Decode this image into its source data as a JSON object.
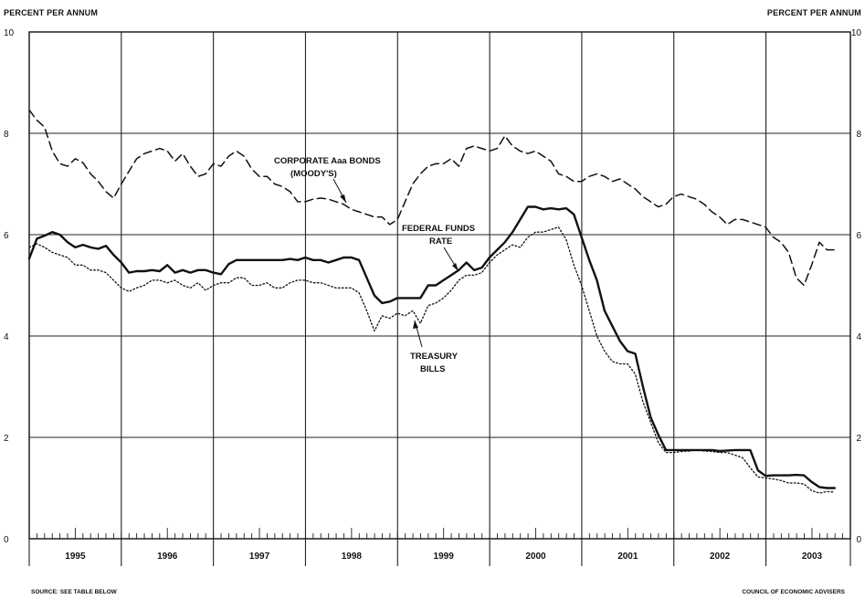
{
  "chart_data": {
    "type": "line",
    "left_axis_label": "PERCENT PER ANNUM",
    "right_axis_label": "PERCENT PER ANNUM",
    "ylim": [
      0,
      10
    ],
    "xlim": [
      1995.0,
      2003.917
    ],
    "y_ticks": [
      "0",
      "2",
      "4",
      "6",
      "8",
      "10"
    ],
    "year_labels": [
      "1995",
      "1996",
      "1997",
      "1998",
      "1999",
      "2000",
      "2001",
      "2002",
      "2003"
    ],
    "grid": "horizontal at each tick, vertical at each year",
    "annotations": {
      "corporate_line1": "CORPORATE Aaa BONDS",
      "corporate_line2": "(MOODY'S)",
      "fedfunds_line1": "FEDERAL FUNDS",
      "fedfunds_line2": "RATE",
      "tbills_line1": "TREASURY",
      "tbills_line2": "BILLS"
    },
    "source": "SOURCE: SEE TABLE BELOW",
    "credit": "COUNCIL OF ECONOMIC ADVISERS",
    "series": [
      {
        "name": "CORPORATE Aaa BONDS (MOODY'S)",
        "style": "dashed",
        "start": 1995.0,
        "step": 0.0833,
        "values": [
          8.46,
          8.26,
          8.12,
          7.65,
          7.4,
          7.35,
          7.5,
          7.42,
          7.2,
          7.05,
          6.85,
          6.72,
          7.0,
          7.25,
          7.5,
          7.6,
          7.65,
          7.7,
          7.65,
          7.45,
          7.6,
          7.35,
          7.15,
          7.2,
          7.4,
          7.35,
          7.55,
          7.65,
          7.55,
          7.3,
          7.15,
          7.15,
          7.0,
          6.95,
          6.85,
          6.65,
          6.65,
          6.7,
          6.72,
          6.7,
          6.65,
          6.6,
          6.5,
          6.45,
          6.4,
          6.35,
          6.35,
          6.2,
          6.3,
          6.65,
          7.0,
          7.2,
          7.35,
          7.4,
          7.4,
          7.5,
          7.35,
          7.7,
          7.75,
          7.7,
          7.65,
          7.7,
          7.95,
          7.75,
          7.65,
          7.6,
          7.65,
          7.55,
          7.45,
          7.2,
          7.15,
          7.05,
          7.05,
          7.15,
          7.2,
          7.15,
          7.05,
          7.1,
          7.0,
          6.9,
          6.75,
          6.65,
          6.55,
          6.6,
          6.75,
          6.8,
          6.75,
          6.7,
          6.6,
          6.45,
          6.35,
          6.2,
          6.3,
          6.3,
          6.25,
          6.2,
          6.15,
          5.95,
          5.85,
          5.65,
          5.15,
          5.0,
          5.4,
          5.85,
          5.7,
          5.7
        ]
      },
      {
        "name": "FEDERAL FUNDS RATE",
        "style": "solid",
        "start": 1995.0,
        "step": 0.0833,
        "values": [
          5.53,
          5.92,
          5.98,
          6.05,
          6.0,
          5.85,
          5.75,
          5.8,
          5.75,
          5.72,
          5.78,
          5.6,
          5.45,
          5.25,
          5.28,
          5.28,
          5.3,
          5.28,
          5.4,
          5.25,
          5.3,
          5.25,
          5.3,
          5.3,
          5.25,
          5.22,
          5.42,
          5.5,
          5.5,
          5.5,
          5.5,
          5.5,
          5.5,
          5.5,
          5.52,
          5.5,
          5.55,
          5.5,
          5.5,
          5.45,
          5.5,
          5.55,
          5.55,
          5.5,
          5.15,
          4.8,
          4.65,
          4.68,
          4.75,
          4.75,
          4.75,
          4.75,
          5.0,
          5.0,
          5.1,
          5.2,
          5.3,
          5.45,
          5.3,
          5.35,
          5.55,
          5.7,
          5.85,
          6.05,
          6.3,
          6.55,
          6.55,
          6.5,
          6.52,
          6.5,
          6.52,
          6.4,
          5.95,
          5.5,
          5.1,
          4.5,
          4.2,
          3.9,
          3.7,
          3.65,
          3.0,
          2.4,
          2.05,
          1.75,
          1.75,
          1.75,
          1.75,
          1.75,
          1.75,
          1.75,
          1.73,
          1.74,
          1.75,
          1.75,
          1.75,
          1.35,
          1.24,
          1.25,
          1.25,
          1.25,
          1.26,
          1.25,
          1.12,
          1.02,
          1.0,
          1.0
        ]
      },
      {
        "name": "TREASURY BILLS",
        "style": "dotted",
        "start": 1995.0,
        "step": 0.0833,
        "values": [
          5.75,
          5.82,
          5.75,
          5.65,
          5.6,
          5.55,
          5.4,
          5.4,
          5.3,
          5.3,
          5.25,
          5.1,
          4.95,
          4.88,
          4.95,
          5.0,
          5.1,
          5.1,
          5.05,
          5.1,
          5.0,
          4.95,
          5.05,
          4.9,
          5.0,
          5.05,
          5.05,
          5.15,
          5.15,
          5.0,
          5.0,
          5.05,
          4.95,
          4.95,
          5.05,
          5.1,
          5.1,
          5.05,
          5.05,
          5.0,
          4.95,
          4.95,
          4.95,
          4.85,
          4.5,
          4.1,
          4.4,
          4.35,
          4.45,
          4.4,
          4.5,
          4.25,
          4.6,
          4.65,
          4.75,
          4.9,
          5.1,
          5.2,
          5.2,
          5.25,
          5.45,
          5.6,
          5.7,
          5.8,
          5.75,
          5.95,
          6.05,
          6.05,
          6.1,
          6.15,
          5.9,
          5.4,
          5.0,
          4.5,
          4.0,
          3.7,
          3.5,
          3.45,
          3.45,
          3.25,
          2.7,
          2.3,
          1.9,
          1.7,
          1.7,
          1.72,
          1.73,
          1.75,
          1.73,
          1.72,
          1.7,
          1.7,
          1.65,
          1.6,
          1.4,
          1.22,
          1.2,
          1.18,
          1.15,
          1.1,
          1.1,
          1.08,
          0.95,
          0.9,
          0.93,
          0.92
        ]
      }
    ]
  }
}
